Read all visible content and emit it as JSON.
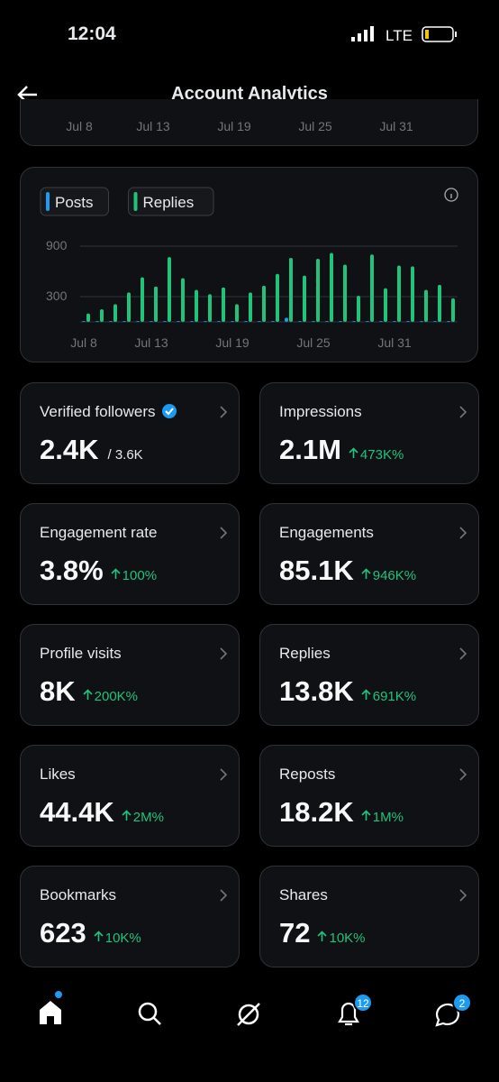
{
  "status_bar": {
    "time": "12:04",
    "network": "LTE"
  },
  "header": {
    "title": "Account Analytics"
  },
  "top_chart_labels": [
    "Jul 8",
    "Jul 13",
    "Jul 19",
    "Jul 25",
    "Jul 31"
  ],
  "chart_data": {
    "type": "bar",
    "categories": [
      "Jul 8",
      null,
      null,
      null,
      null,
      "Jul 13",
      null,
      null,
      null,
      null,
      null,
      "Jul 19",
      null,
      null,
      null,
      null,
      null,
      "Jul 25",
      null,
      null,
      null,
      null,
      null,
      "Jul 31",
      null,
      null,
      null,
      null
    ],
    "series": [
      {
        "name": "Posts",
        "color": "#1d9bf0",
        "values": [
          10,
          10,
          10,
          10,
          10,
          10,
          10,
          10,
          10,
          10,
          10,
          10,
          10,
          10,
          10,
          50,
          10,
          10,
          10,
          10,
          10,
          10,
          10,
          10,
          10,
          10,
          10,
          10
        ]
      },
      {
        "name": "Replies",
        "color": "#1fc37a",
        "values": [
          100,
          150,
          210,
          350,
          530,
          420,
          770,
          520,
          380,
          330,
          410,
          210,
          350,
          430,
          570,
          760,
          550,
          750,
          820,
          680,
          310,
          800,
          400,
          670,
          660,
          380,
          440,
          280
        ]
      }
    ],
    "ylim": [
      0,
      950
    ],
    "yticks": [
      300,
      900
    ],
    "grid": true
  },
  "cards": [
    {
      "label": "Verified followers",
      "value": "2.4K",
      "sub": "/ 3.6K"
    },
    {
      "label": "Impressions",
      "value": "2.1M",
      "change": "473K%"
    },
    {
      "label": "Engagement rate",
      "value": "3.8%",
      "change": "100%"
    },
    {
      "label": "Engagements",
      "value": "85.1K",
      "change": "946K%"
    },
    {
      "label": "Profile visits",
      "value": "8K",
      "change": "200K%"
    },
    {
      "label": "Replies",
      "value": "13.8K",
      "change": "691K%"
    },
    {
      "label": "Likes",
      "value": "44.4K",
      "change": "2M%"
    },
    {
      "label": "Reposts",
      "value": "18.2K",
      "change": "1M%"
    },
    {
      "label": "Bookmarks",
      "value": "623",
      "change": "10K%"
    },
    {
      "label": "Shares",
      "value": "72",
      "change": "10K%"
    }
  ],
  "nav": {
    "notifications_badge": "12",
    "messages_badge": "2"
  }
}
